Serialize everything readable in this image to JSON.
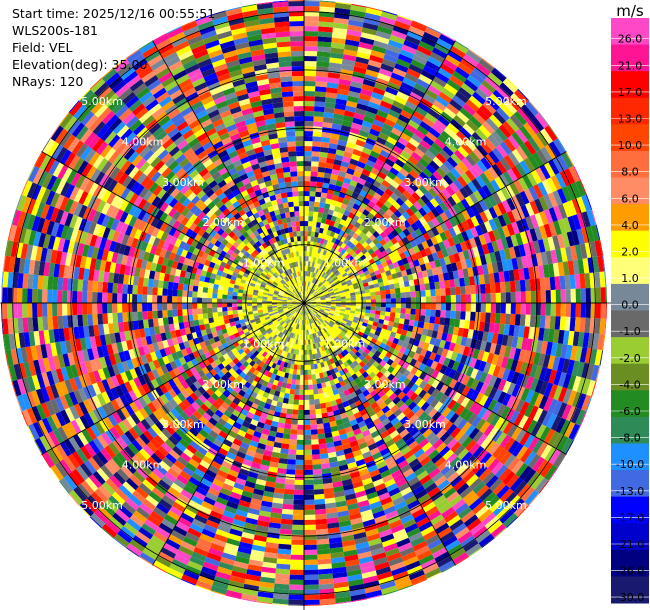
{
  "header": {
    "start_time": "Start time: 2025/12/16 00:55:51",
    "instrument": "WLS200s-181",
    "field": "Field: VEL",
    "elevation": "Elevation(deg): 35.00",
    "nrays": "NRays: 120"
  },
  "chart_data": {
    "type": "heatmap",
    "projection": "polar-ppi",
    "field": "VEL",
    "units": "m/s",
    "nrays": 120,
    "max_range_km": 5.2,
    "range_rings_km": [
      1,
      2,
      3,
      4,
      5
    ],
    "ring_labels": [
      "1.00km",
      "2.00km",
      "3.00km",
      "4.00km",
      "5.00km"
    ],
    "near_field": "low velocities (about -4 to 4 m/s, olive/yellow/gray) within about 1 km",
    "far_field": "mixed values spanning the full -30 to 26 m/s scale beyond about 1.5 km",
    "colorbar": {
      "title": "m/s",
      "ticks": [
        "26.0",
        "21.0",
        "17.0",
        "13.0",
        "10.0",
        "8.0",
        "6.0",
        "4.0",
        "2.0",
        "1.0",
        "0.0",
        "-1.0",
        "-2.0",
        "-4.0",
        "-6.0",
        "-8.0",
        "-10.0",
        "-13.0",
        "-17.0",
        "-21.0",
        "-26.0",
        "-30.0"
      ],
      "colors": [
        "#ff48c8",
        "#ff1493",
        "#ff0000",
        "#ff2800",
        "#ff4500",
        "#ff6e3c",
        "#ff8c64",
        "#ff9d00",
        "#ffff00",
        "#ffff78",
        "#778899",
        "#696969",
        "#9acd32",
        "#6b8e23",
        "#228b22",
        "#2e8b57",
        "#1e90ff",
        "#4169e1",
        "#0000ff",
        "#0000cd",
        "#000080",
        "#191970"
      ]
    }
  }
}
